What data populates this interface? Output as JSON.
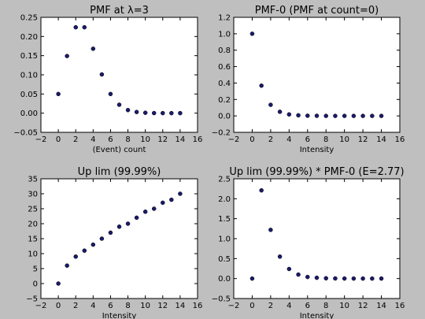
{
  "figure": {
    "background": "#bfbfbf",
    "marker_color": "#1a1a6e"
  },
  "chart_data": [
    {
      "type": "scatter",
      "title": "PMF at λ=3",
      "xlabel": "(Event) count",
      "ylabel": "",
      "xlim": [
        -2,
        16
      ],
      "ylim": [
        -0.05,
        0.25
      ],
      "xticks": [
        -2,
        0,
        2,
        4,
        6,
        8,
        10,
        12,
        14,
        16
      ],
      "yticks": [
        -0.05,
        0.0,
        0.05,
        0.1,
        0.15,
        0.2,
        0.25
      ],
      "ytick_labels": [
        "−0.05",
        "0.00",
        "0.05",
        "0.10",
        "0.15",
        "0.20",
        "0.25"
      ],
      "grid": false,
      "x": [
        0,
        1,
        2,
        3,
        4,
        5,
        6,
        7,
        8,
        9,
        10,
        11,
        12,
        13,
        14
      ],
      "y": [
        0.05,
        0.149,
        0.224,
        0.224,
        0.168,
        0.101,
        0.05,
        0.022,
        0.008,
        0.003,
        0.001,
        0.0002,
        0.0001,
        0.0,
        0.0
      ]
    },
    {
      "type": "scatter",
      "title": "PMF-0 (PMF at count=0)",
      "xlabel": "Intensity",
      "ylabel": "",
      "xlim": [
        -2,
        16
      ],
      "ylim": [
        -0.2,
        1.2
      ],
      "xticks": [
        -2,
        0,
        2,
        4,
        6,
        8,
        10,
        12,
        14,
        16
      ],
      "yticks": [
        -0.2,
        0.0,
        0.2,
        0.4,
        0.6,
        0.8,
        1.0,
        1.2
      ],
      "ytick_labels": [
        "−0.2",
        "0.0",
        "0.2",
        "0.4",
        "0.6",
        "0.8",
        "1.0",
        "1.2"
      ],
      "grid": false,
      "x": [
        0,
        1,
        2,
        3,
        4,
        5,
        6,
        7,
        8,
        9,
        10,
        11,
        12,
        13,
        14
      ],
      "y": [
        1.0,
        0.368,
        0.135,
        0.05,
        0.018,
        0.007,
        0.002,
        0.001,
        0.0,
        0.0,
        0.0,
        0.0,
        0.0,
        0.0,
        0.0
      ]
    },
    {
      "type": "scatter",
      "title": "Up lim (99.99%)",
      "xlabel": "Intensity",
      "ylabel": "",
      "xlim": [
        -2,
        16
      ],
      "ylim": [
        -5,
        35
      ],
      "xticks": [
        -2,
        0,
        2,
        4,
        6,
        8,
        10,
        12,
        14,
        16
      ],
      "yticks": [
        -5,
        0,
        5,
        10,
        15,
        20,
        25,
        30,
        35
      ],
      "ytick_labels": [
        "−5",
        "0",
        "5",
        "10",
        "15",
        "20",
        "25",
        "30",
        "35"
      ],
      "grid": false,
      "x": [
        0,
        1,
        2,
        3,
        4,
        5,
        6,
        7,
        8,
        9,
        10,
        11,
        12,
        13,
        14
      ],
      "y": [
        0,
        6,
        9,
        11,
        13,
        15,
        17,
        19,
        20,
        22,
        24,
        25,
        27,
        28,
        30
      ]
    },
    {
      "type": "scatter",
      "title": "Up lim (99.99%) * PMF-0 (E=2.77)",
      "xlabel": "Intensity",
      "ylabel": "",
      "xlim": [
        -2,
        16
      ],
      "ylim": [
        -0.5,
        2.5
      ],
      "xticks": [
        -2,
        0,
        2,
        4,
        6,
        8,
        10,
        12,
        14,
        16
      ],
      "yticks": [
        -0.5,
        0.0,
        0.5,
        1.0,
        1.5,
        2.0,
        2.5
      ],
      "ytick_labels": [
        "−0.5",
        "0.0",
        "0.5",
        "1.0",
        "1.5",
        "2.0",
        "2.5"
      ],
      "grid": false,
      "x": [
        0,
        1,
        2,
        3,
        4,
        5,
        6,
        7,
        8,
        9,
        10,
        11,
        12,
        13,
        14
      ],
      "y": [
        0,
        2.21,
        1.22,
        0.55,
        0.24,
        0.1,
        0.04,
        0.02,
        0.007,
        0.003,
        0.001,
        0.0,
        0.0,
        0.0,
        0.0
      ]
    }
  ]
}
